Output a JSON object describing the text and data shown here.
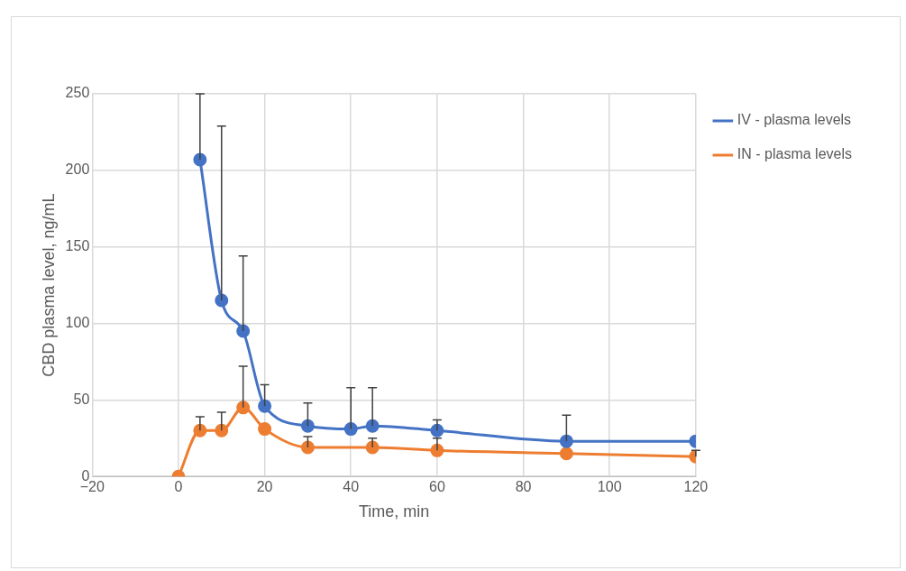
{
  "chart_data": {
    "type": "line",
    "xlabel": "Time, min",
    "ylabel": "CBD plasma level, ng/mL",
    "xlim": [
      -20,
      120
    ],
    "xticks": [
      {
        "value": -20,
        "label": "−20"
      },
      0,
      20,
      40,
      60,
      80,
      100,
      120
    ],
    "ylim": [
      0,
      250
    ],
    "yticks": [
      0,
      50,
      100,
      150,
      200,
      250
    ],
    "grid": true,
    "legend": "top right",
    "marker": "circle",
    "line_style": "solid",
    "series": [
      {
        "name": "IV - plasma levels",
        "color": "#4472c4",
        "x": [
          5,
          10,
          15,
          20,
          30,
          40,
          45,
          60,
          90,
          120
        ],
        "values": [
          207,
          115,
          95,
          46,
          33,
          31,
          33,
          30,
          23,
          23
        ],
        "errors": [
          [
            207,
            250
          ],
          [
            115,
            229
          ],
          [
            95,
            144
          ],
          [
            46,
            60
          ],
          [
            33,
            48
          ],
          [
            31,
            58
          ],
          [
            33,
            58
          ],
          [
            30,
            37
          ],
          [
            23,
            40
          ],
          null
        ]
      },
      {
        "name": "IN - plasma levels",
        "color": "#ed7d31",
        "x": [
          0,
          5,
          10,
          15,
          20,
          30,
          45,
          60,
          90,
          120
        ],
        "values": [
          0,
          30,
          30,
          45,
          31,
          19,
          19,
          17,
          15,
          13
        ],
        "errors": [
          null,
          [
            30,
            39
          ],
          [
            30,
            42
          ],
          [
            45,
            72
          ],
          null,
          [
            19,
            26
          ],
          [
            19,
            25
          ],
          [
            17,
            25
          ],
          null,
          [
            13,
            17
          ]
        ]
      }
    ]
  }
}
